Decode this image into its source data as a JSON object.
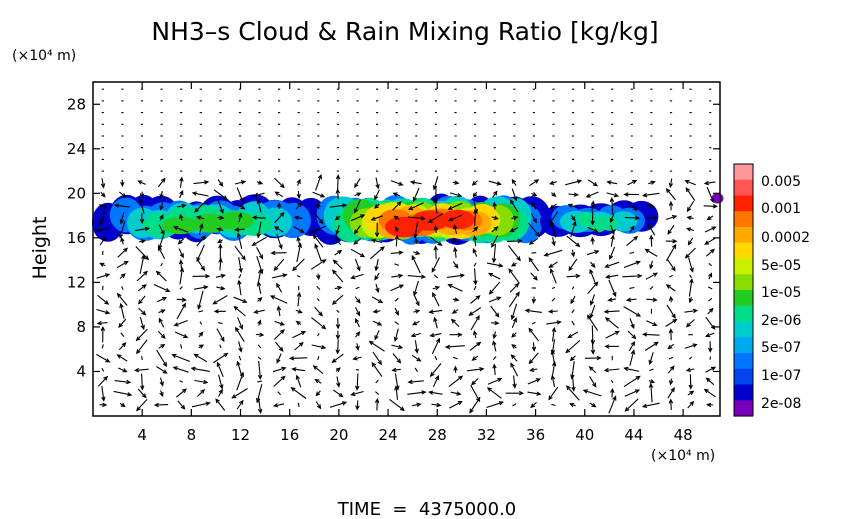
{
  "chart_data": {
    "type": "heatmap",
    "title": "NH3–s Cloud & Rain Mixing Ratio [kg/kg]",
    "ylabel": "Height",
    "x_unit": "(×10⁴ m)",
    "y_unit": "(×10⁴ m)",
    "footer": "TIME  =  4375000.0",
    "xlim": [
      0,
      51
    ],
    "ylim": [
      0,
      30
    ],
    "xticks": [
      4,
      8,
      12,
      16,
      20,
      24,
      28,
      32,
      36,
      40,
      44,
      48
    ],
    "yticks": [
      4,
      8,
      12,
      16,
      20,
      24,
      28
    ],
    "grid": false,
    "legend_position": "right",
    "colorbar": {
      "labels": [
        "0.005",
        "0.001",
        "0.0002",
        "5e-05",
        "1e-05",
        "2e-06",
        "5e-07",
        "1e-07",
        "2e-08"
      ],
      "colors": [
        "#ff9999",
        "#ff5555",
        "#ff2200",
        "#ff7700",
        "#ffaa00",
        "#ffd800",
        "#ccee00",
        "#88dd00",
        "#22cc22",
        "#00dd88",
        "#00cccc",
        "#00aaee",
        "#0077ff",
        "#0044ee",
        "#0000cc",
        "#7700bb"
      ]
    },
    "cloud_regions": [
      {
        "x": [
          0.3,
          18.5
        ],
        "y": [
          16.2,
          19.7
        ],
        "peak": "1e-05"
      },
      {
        "x": [
          18.5,
          36.5
        ],
        "y": [
          16.0,
          19.8
        ],
        "peak": "0.001"
      },
      {
        "x": [
          37.5,
          45.0
        ],
        "y": [
          16.4,
          19.2
        ],
        "peak": "2e-06"
      },
      {
        "x": [
          50.5,
          51.0
        ],
        "y": [
          19.3,
          19.9
        ],
        "peak": "2e-08"
      }
    ],
    "wind_vectors_shown": true
  }
}
